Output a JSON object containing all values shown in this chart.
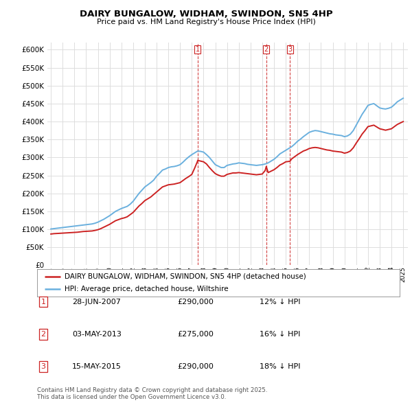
{
  "title": "DAIRY BUNGALOW, WIDHAM, SWINDON, SN5 4HP",
  "subtitle": "Price paid vs. HM Land Registry's House Price Index (HPI)",
  "hpi_color": "#6ab0de",
  "price_color": "#cc2222",
  "vline_color": "#cc2222",
  "background_color": "#ffffff",
  "grid_color": "#dddddd",
  "ylim": [
    0,
    620000
  ],
  "yticks": [
    0,
    50000,
    100000,
    150000,
    200000,
    250000,
    300000,
    350000,
    400000,
    450000,
    500000,
    550000,
    600000
  ],
  "legend_label_red": "DAIRY BUNGALOW, WIDHAM, SWINDON, SN5 4HP (detached house)",
  "legend_label_blue": "HPI: Average price, detached house, Wiltshire",
  "sale_dates": [
    2007.49,
    2013.34,
    2015.37
  ],
  "sale_labels": [
    "1",
    "2",
    "3"
  ],
  "sale_prices": [
    290000,
    275000,
    290000
  ],
  "table_rows": [
    {
      "num": "1",
      "date": "28-JUN-2007",
      "price": "£290,000",
      "hpi": "12% ↓ HPI"
    },
    {
      "num": "2",
      "date": "03-MAY-2013",
      "price": "£275,000",
      "hpi": "16% ↓ HPI"
    },
    {
      "num": "3",
      "date": "15-MAY-2015",
      "price": "£290,000",
      "hpi": "18% ↓ HPI"
    }
  ],
  "footnote": "Contains HM Land Registry data © Crown copyright and database right 2025.\nThis data is licensed under the Open Government Licence v3.0.",
  "hpi_x": [
    1995.0,
    1995.25,
    1995.5,
    1995.75,
    1996.0,
    1996.25,
    1996.5,
    1996.75,
    1997.0,
    1997.25,
    1997.5,
    1997.75,
    1998.0,
    1998.25,
    1998.5,
    1998.75,
    1999.0,
    1999.25,
    1999.5,
    1999.75,
    2000.0,
    2000.25,
    2000.5,
    2000.75,
    2001.0,
    2001.25,
    2001.5,
    2001.75,
    2002.0,
    2002.25,
    2002.5,
    2002.75,
    2003.0,
    2003.25,
    2003.5,
    2003.75,
    2004.0,
    2004.25,
    2004.5,
    2004.75,
    2005.0,
    2005.25,
    2005.5,
    2005.75,
    2006.0,
    2006.25,
    2006.5,
    2006.75,
    2007.0,
    2007.25,
    2007.5,
    2007.75,
    2008.0,
    2008.25,
    2008.5,
    2008.75,
    2009.0,
    2009.25,
    2009.5,
    2009.75,
    2010.0,
    2010.25,
    2010.5,
    2010.75,
    2011.0,
    2011.25,
    2011.5,
    2011.75,
    2012.0,
    2012.25,
    2012.5,
    2012.75,
    2013.0,
    2013.25,
    2013.5,
    2013.75,
    2014.0,
    2014.25,
    2014.5,
    2014.75,
    2015.0,
    2015.25,
    2015.5,
    2015.75,
    2016.0,
    2016.25,
    2016.5,
    2016.75,
    2017.0,
    2017.25,
    2017.5,
    2017.75,
    2018.0,
    2018.25,
    2018.5,
    2018.75,
    2019.0,
    2019.25,
    2019.5,
    2019.75,
    2020.0,
    2020.25,
    2020.5,
    2020.75,
    2021.0,
    2021.25,
    2021.5,
    2021.75,
    2022.0,
    2022.25,
    2022.5,
    2022.75,
    2023.0,
    2023.25,
    2023.5,
    2023.75,
    2024.0,
    2024.25,
    2024.5,
    2024.75,
    2025.0
  ],
  "hpi_y": [
    101000,
    102000,
    103000,
    104000,
    105000,
    106000,
    107000,
    108000,
    109000,
    110000,
    111000,
    112000,
    113000,
    114000,
    115000,
    117000,
    120000,
    124000,
    128000,
    133000,
    138000,
    144000,
    150000,
    154000,
    158000,
    161000,
    164000,
    170000,
    178000,
    189000,
    200000,
    209000,
    218000,
    224000,
    230000,
    237000,
    248000,
    256000,
    265000,
    268000,
    272000,
    274000,
    275000,
    277000,
    280000,
    287000,
    295000,
    302000,
    308000,
    313000,
    318000,
    317000,
    315000,
    308000,
    300000,
    290000,
    280000,
    276000,
    272000,
    272000,
    278000,
    280000,
    282000,
    283000,
    285000,
    284000,
    283000,
    281000,
    280000,
    279000,
    278000,
    279000,
    280000,
    282000,
    285000,
    290000,
    295000,
    302000,
    310000,
    315000,
    320000,
    325000,
    330000,
    337000,
    345000,
    351000,
    358000,
    364000,
    370000,
    373000,
    375000,
    374000,
    372000,
    370000,
    368000,
    366000,
    365000,
    363000,
    362000,
    361000,
    358000,
    360000,
    365000,
    375000,
    390000,
    405000,
    420000,
    432000,
    445000,
    448000,
    450000,
    444000,
    438000,
    436000,
    435000,
    437000,
    440000,
    447000,
    455000,
    460000,
    465000
  ],
  "price_x": [
    1995.0,
    1995.25,
    1995.5,
    1995.75,
    1996.0,
    1996.25,
    1996.5,
    1996.75,
    1997.0,
    1997.25,
    1997.5,
    1997.75,
    1998.0,
    1998.25,
    1998.5,
    1998.75,
    1999.0,
    1999.25,
    1999.5,
    1999.75,
    2000.0,
    2000.25,
    2000.5,
    2000.75,
    2001.0,
    2001.25,
    2001.5,
    2001.75,
    2002.0,
    2002.25,
    2002.5,
    2002.75,
    2003.0,
    2003.25,
    2003.5,
    2003.75,
    2004.0,
    2004.25,
    2004.5,
    2004.75,
    2005.0,
    2005.25,
    2005.5,
    2005.75,
    2006.0,
    2006.25,
    2006.5,
    2006.75,
    2007.0,
    2007.25,
    2007.49,
    2007.5,
    2008.0,
    2008.25,
    2008.5,
    2008.75,
    2009.0,
    2009.25,
    2009.5,
    2009.75,
    2010.0,
    2010.25,
    2010.5,
    2010.75,
    2011.0,
    2011.25,
    2011.5,
    2011.75,
    2012.0,
    2012.25,
    2012.5,
    2012.75,
    2013.0,
    2013.25,
    2013.34,
    2013.5,
    2014.0,
    2014.25,
    2014.5,
    2014.75,
    2015.0,
    2015.25,
    2015.37,
    2015.5,
    2016.0,
    2016.25,
    2016.5,
    2016.75,
    2017.0,
    2017.25,
    2017.5,
    2017.75,
    2018.0,
    2018.25,
    2018.5,
    2018.75,
    2019.0,
    2019.25,
    2019.5,
    2019.75,
    2020.0,
    2020.25,
    2020.5,
    2020.75,
    2021.0,
    2021.25,
    2021.5,
    2021.75,
    2022.0,
    2022.25,
    2022.5,
    2022.75,
    2023.0,
    2023.25,
    2023.5,
    2023.75,
    2024.0,
    2024.25,
    2024.5,
    2024.75,
    2025.0
  ],
  "price_y": [
    87000,
    88000,
    88500,
    89000,
    89500,
    90000,
    90500,
    91000,
    91500,
    92000,
    93000,
    94000,
    94500,
    95000,
    95500,
    97000,
    99000,
    102000,
    106000,
    110000,
    114000,
    119000,
    124000,
    127000,
    130000,
    132000,
    135000,
    141000,
    147000,
    156000,
    165000,
    172000,
    180000,
    185000,
    190000,
    197000,
    204000,
    211000,
    218000,
    221000,
    224000,
    225000,
    226000,
    228000,
    230000,
    236000,
    242000,
    247000,
    253000,
    271000,
    290000,
    292000,
    288000,
    282000,
    272000,
    263000,
    255000,
    251000,
    248000,
    248000,
    253000,
    255000,
    257000,
    257000,
    258000,
    257000,
    256000,
    255000,
    254000,
    253000,
    252000,
    253000,
    254000,
    264000,
    275000,
    258000,
    266000,
    272000,
    279000,
    283000,
    288000,
    289000,
    290000,
    296000,
    308000,
    313000,
    318000,
    321000,
    325000,
    327000,
    328000,
    327000,
    325000,
    323000,
    321000,
    320000,
    318000,
    317000,
    316000,
    315000,
    312000,
    314000,
    318000,
    327000,
    340000,
    352000,
    365000,
    375000,
    386000,
    388000,
    390000,
    385000,
    380000,
    378000,
    376000,
    378000,
    380000,
    386000,
    392000,
    396000,
    400000
  ]
}
